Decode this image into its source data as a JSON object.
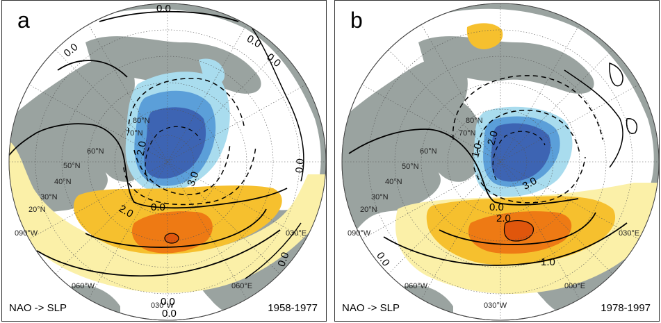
{
  "panels": [
    {
      "letter": "a",
      "index_label": "NAO -> SLP",
      "period": "1958-1977",
      "lat_labels": [
        "80°N",
        "70°N",
        "60°N",
        "50°N",
        "40°N",
        "30°N",
        "20°N"
      ],
      "lon_labels": [
        "090°W",
        "060°W",
        "030°W",
        "030°E",
        "060°E"
      ],
      "contour_labels": [
        "0.0",
        "0.0",
        "0.0",
        "0.0",
        "2.0",
        "3.0",
        "0.0",
        "2.0",
        "0.0",
        "0.0",
        "0.0",
        "0.0"
      ]
    },
    {
      "letter": "b",
      "index_label": "NAO -> SLP",
      "period": "1978-1997",
      "lat_labels": [
        "80°N",
        "70°N",
        "60°N",
        "50°N",
        "40°N",
        "30°N",
        "20°N"
      ],
      "lon_labels": [
        "090°W",
        "060°W",
        "030°W",
        "030°E",
        "000°E"
      ],
      "contour_labels": [
        "2.0",
        "1.0",
        "3.0",
        "0.0",
        "2.0",
        "1.0",
        "0.0"
      ]
    }
  ],
  "colors": {
    "land": "#9aa3a0",
    "ocean": "#ffffff",
    "neg_light": "#a9dcee",
    "neg_mid": "#5b9fd9",
    "neg_dark": "#3d64b3",
    "pos_light": "#fbf0a8",
    "pos_mid": "#f6c02e",
    "pos_dark": "#ee7a14",
    "pos_max": "#e0560c"
  }
}
